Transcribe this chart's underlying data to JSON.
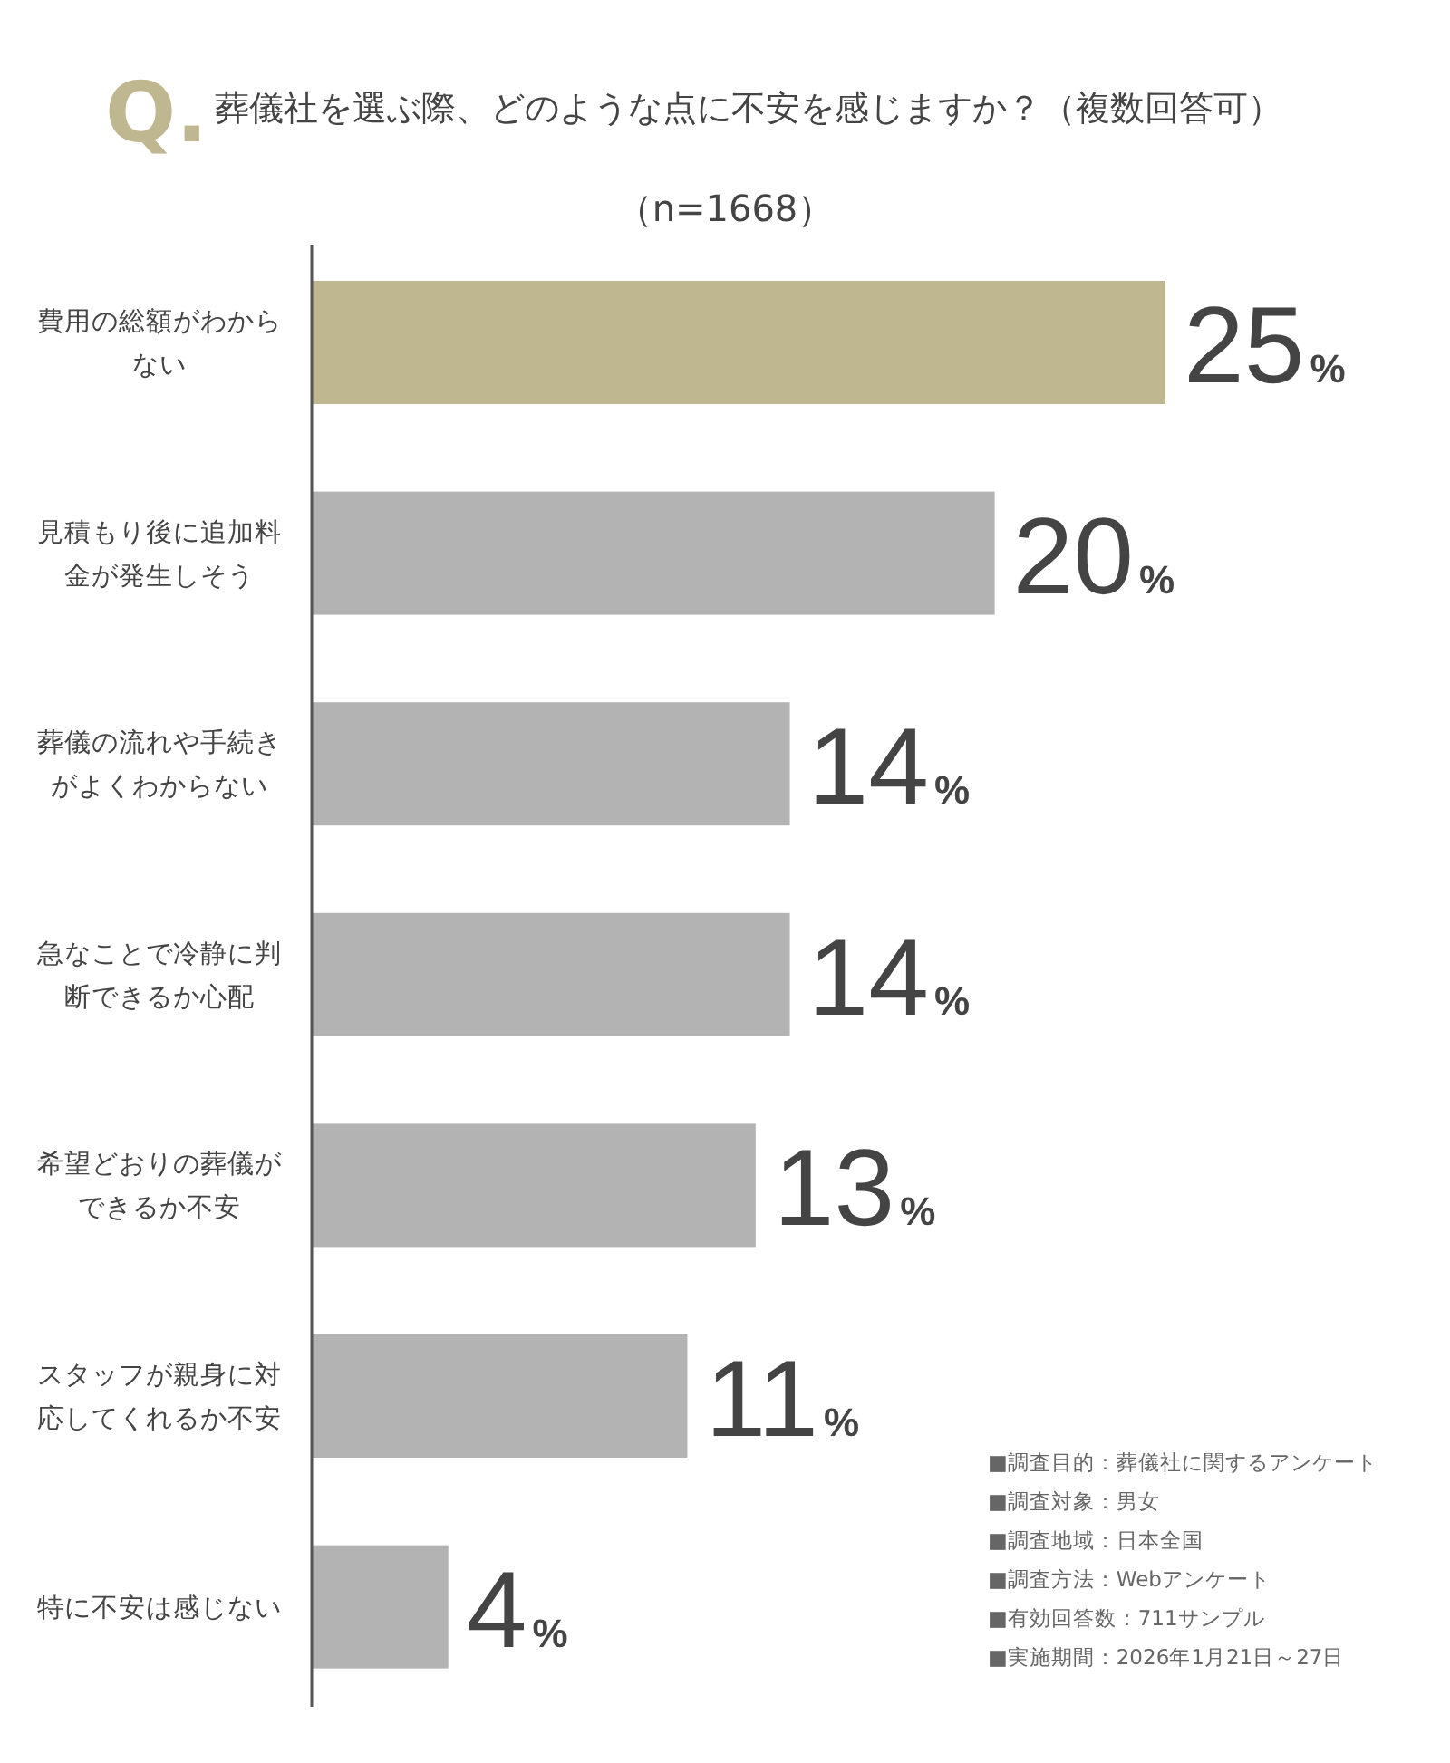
{
  "chart_data": {
    "type": "bar",
    "orientation": "horizontal",
    "title": "Q.葬儀社を選ぶ際、どのような点に不安を感じますか？（複数回答可）",
    "subtitle": "（n=1668）",
    "categories": [
      "費用の総額がわからない",
      "見積もり後に追加料金が発生しそう",
      "葬儀の流れや手続きがよくわからない",
      "急なことで冷静に判断できるか心配",
      "希望どおりの葬儀ができるか不安",
      "スタッフが親身に対応してくれるか不安",
      "特に不安は感じない"
    ],
    "values": [
      25,
      20,
      14,
      14,
      13,
      11,
      4
    ],
    "colors": [
      "#bfb78f",
      "#b3b3b3",
      "#b3b3b3",
      "#b3b3b3",
      "#b3b3b3",
      "#b3b3b3",
      "#b3b3b3"
    ],
    "value_labels": [
      "25%",
      "20%",
      "14%",
      "14%",
      "13%",
      "11%",
      "4%"
    ],
    "annotations": [
      "■調査目的：葬儀社に関するアンケート",
      "■調査対象：男女",
      "■調査地域：日本全国",
      "■調査方法：Webアンケート",
      "■有効回答数：711サンプル",
      "■実施期間：2026年1月21日～27日"
    ]
  }
}
